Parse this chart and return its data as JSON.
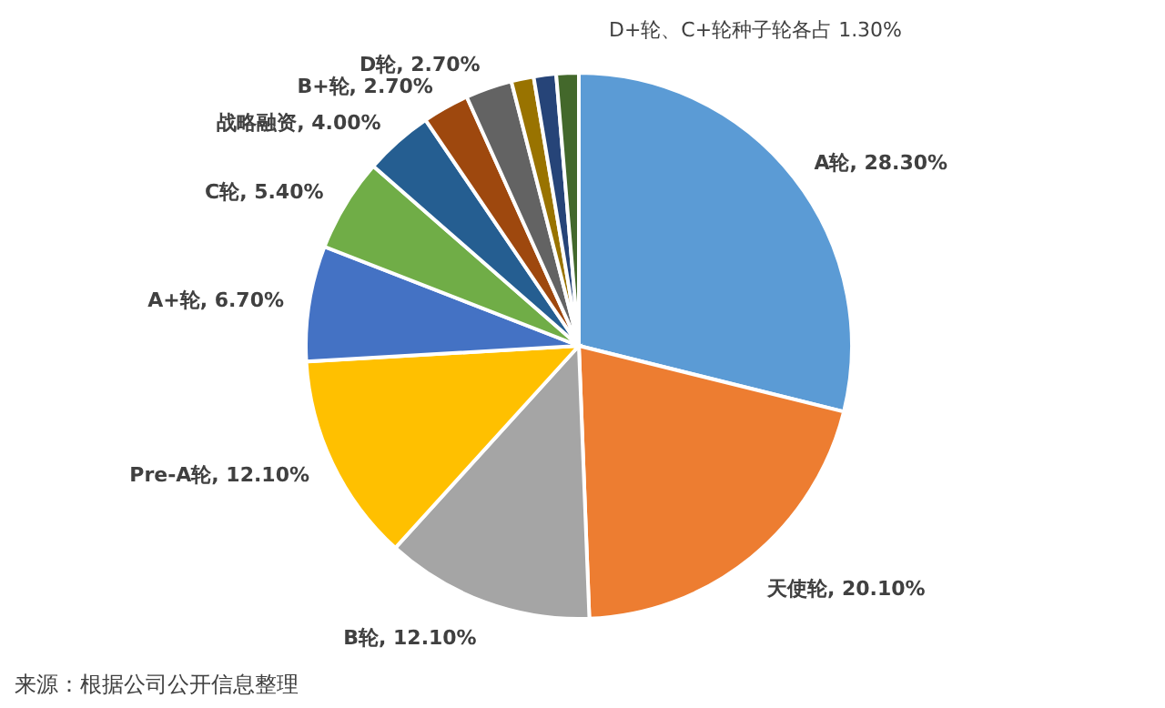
{
  "chart_data": {
    "type": "pie",
    "categories": [
      "A轮",
      "天使轮",
      "B轮",
      "Pre-A轮",
      "A+轮",
      "C轮",
      "战略融资",
      "B+轮",
      "D轮",
      null,
      null,
      null
    ],
    "values": [
      28.3,
      20.1,
      12.1,
      12.1,
      6.7,
      5.4,
      4.0,
      2.7,
      2.7,
      1.3,
      1.3,
      1.3
    ],
    "value_labels": [
      "28.30%",
      "20.10%",
      "12.10%",
      "12.10%",
      "6.70%",
      "5.40%",
      "4.00%",
      "2.70%",
      "2.70%",
      null,
      null,
      null
    ],
    "colors": [
      "#5b9bd5",
      "#ed7d31",
      "#a5a5a5",
      "#ffc000",
      "#4472c4",
      "#70ad47",
      "#255e91",
      "#9e480e",
      "#636363",
      "#997300",
      "#264478",
      "#43682b"
    ],
    "annotations": [
      "D+轮、C+轮种子轮各占 1.30%",
      "来源：根据公司公开信息整理"
    ]
  }
}
